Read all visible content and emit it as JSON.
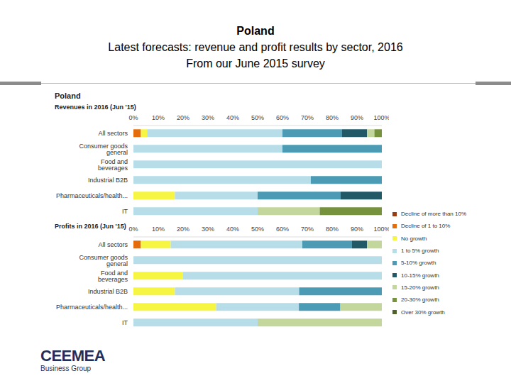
{
  "header": {
    "title": "Poland",
    "subtitle": "Latest forecasts: revenue and profit results by sector, 2016",
    "note": "From our June 2015 survey"
  },
  "panel_title": "Poland",
  "logo": {
    "name": "CEEMEA",
    "tagline": "Business Group"
  },
  "chart_data": [
    {
      "type": "bar",
      "orientation": "horizontal",
      "stacked": true,
      "grid": false,
      "legend": "right",
      "title": "Revenues in 2016 (Jun '15)",
      "categories": [
        "All sectors",
        "Consumer goods general",
        "Food and beverages",
        "Industrial B2B",
        "Pharmaceuticals/health...",
        "IT"
      ],
      "xlim": [
        0,
        100
      ],
      "xticks": [
        {
          "value": 0,
          "label": "0%"
        },
        {
          "value": 10,
          "label": "10%"
        },
        {
          "value": 20,
          "label": "20%"
        },
        {
          "value": 30,
          "label": "30%"
        },
        {
          "value": 40,
          "label": "40%"
        },
        {
          "value": 50,
          "label": "50%"
        },
        {
          "value": 60,
          "label": "60%"
        },
        {
          "value": 70,
          "label": "70%"
        },
        {
          "value": 80,
          "label": "80%"
        },
        {
          "value": 90,
          "label": "90%"
        },
        {
          "value": 100,
          "label": "100%"
        }
      ],
      "series": [
        {
          "name": "Decline of more than 10%",
          "color": "#9c3a12",
          "values": [
            0,
            0,
            0,
            0,
            0,
            0
          ]
        },
        {
          "name": "Decline of 1 to 10%",
          "color": "#e46c0a",
          "values": [
            3,
            0,
            0,
            0,
            0,
            0
          ]
        },
        {
          "name": "No growth",
          "color": "#f5f542",
          "values": [
            2.5,
            0,
            0,
            0,
            16.7,
            0
          ]
        },
        {
          "name": "1 to 5% growth",
          "color": "#b7dde8",
          "values": [
            54.5,
            60,
            100,
            71.4,
            33.3,
            50
          ]
        },
        {
          "name": "5-10% growth",
          "color": "#4a9bb3",
          "values": [
            24,
            40,
            0,
            28.6,
            33.3,
            0
          ]
        },
        {
          "name": "10-15% growth",
          "color": "#215967",
          "values": [
            10,
            0,
            0,
            0,
            16.7,
            0
          ]
        },
        {
          "name": "15-20% growth",
          "color": "#c3d69b",
          "values": [
            3,
            0,
            0,
            0,
            0,
            25
          ]
        },
        {
          "name": "20-30% growth",
          "color": "#76923c",
          "values": [
            3,
            0,
            0,
            0,
            0,
            25
          ]
        },
        {
          "name": "Over 30% growth",
          "color": "#4f6228",
          "values": [
            0,
            0,
            0,
            0,
            0,
            0
          ]
        }
      ]
    },
    {
      "type": "bar",
      "orientation": "horizontal",
      "stacked": true,
      "grid": false,
      "title": "Profits in 2016 (Jun '15)",
      "categories": [
        "All sectors",
        "Consumer goods general",
        "Food and beverages",
        "Industrial B2B",
        "Pharmaceuticals/health...",
        "IT"
      ],
      "xlim": [
        0,
        100
      ],
      "xticks": [
        {
          "value": 0,
          "label": "0%"
        },
        {
          "value": 10,
          "label": "10%"
        },
        {
          "value": 20,
          "label": "20%"
        },
        {
          "value": 30,
          "label": "30%"
        },
        {
          "value": 40,
          "label": "40%"
        },
        {
          "value": 50,
          "label": "50%"
        },
        {
          "value": 60,
          "label": "60%"
        },
        {
          "value": 70,
          "label": "70%"
        },
        {
          "value": 80,
          "label": "80%"
        },
        {
          "value": 90,
          "label": "90%"
        },
        {
          "value": 100,
          "label": "100%"
        }
      ],
      "series": [
        {
          "name": "Decline of more than 10%",
          "color": "#9c3a12",
          "values": [
            0,
            0,
            0,
            0,
            0,
            0
          ]
        },
        {
          "name": "Decline of 1 to 10%",
          "color": "#e46c0a",
          "values": [
            3,
            0,
            0,
            0,
            0,
            0
          ]
        },
        {
          "name": "No growth",
          "color": "#f5f542",
          "values": [
            12,
            0,
            20,
            16.7,
            33.3,
            0
          ]
        },
        {
          "name": "1 to 5% growth",
          "color": "#b7dde8",
          "values": [
            53,
            100,
            80,
            50,
            33.3,
            50
          ]
        },
        {
          "name": "5-10% growth",
          "color": "#4a9bb3",
          "values": [
            20,
            0,
            0,
            33.3,
            16.7,
            0
          ]
        },
        {
          "name": "10-15% growth",
          "color": "#215967",
          "values": [
            6,
            0,
            0,
            0,
            0,
            0
          ]
        },
        {
          "name": "15-20% growth",
          "color": "#c3d69b",
          "values": [
            6,
            0,
            0,
            0,
            16.7,
            50
          ]
        },
        {
          "name": "20-30% growth",
          "color": "#76923c",
          "values": [
            0,
            0,
            0,
            0,
            0,
            0
          ]
        },
        {
          "name": "Over 30% growth",
          "color": "#4f6228",
          "values": [
            0,
            0,
            0,
            0,
            0,
            0
          ]
        }
      ]
    }
  ]
}
